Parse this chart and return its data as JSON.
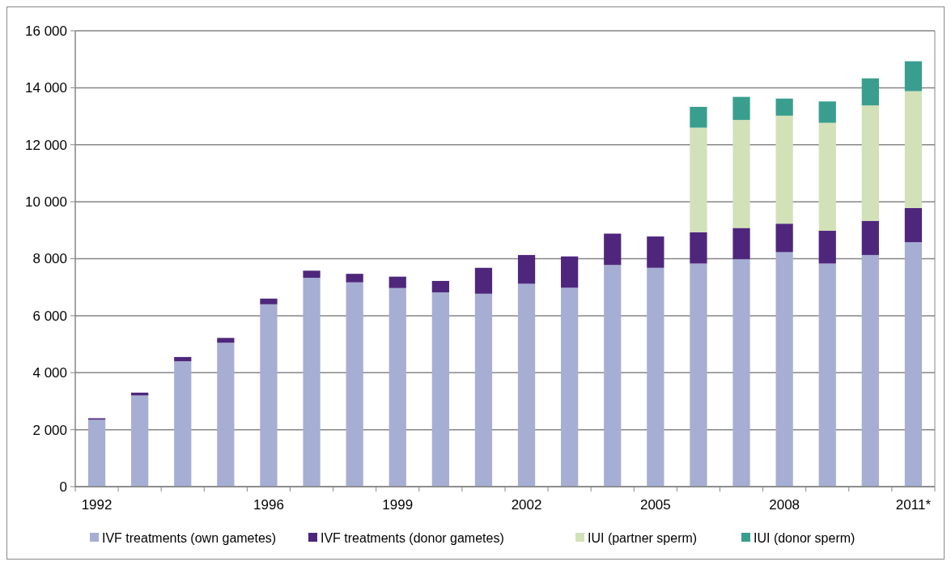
{
  "chart_data": {
    "type": "bar",
    "stacked": true,
    "categories": [
      "1992",
      null,
      null,
      null,
      "1996",
      null,
      null,
      "1999",
      null,
      null,
      "2002",
      null,
      null,
      "2005",
      null,
      null,
      "2008",
      null,
      null,
      "2011*"
    ],
    "series": [
      {
        "name": "IVF treatments  (own gametes)",
        "color": "#a6aed4",
        "values": [
          2350,
          3200,
          4400,
          5050,
          6400,
          7330,
          7170,
          6970,
          6820,
          6770,
          7120,
          6980,
          7780,
          7680,
          7830,
          7980,
          8230,
          7830,
          8130,
          8580
        ]
      },
      {
        "name": "IVF treatments  (donor gametes)",
        "color": "#4e277c",
        "values": [
          50,
          100,
          150,
          170,
          200,
          250,
          300,
          400,
          400,
          910,
          1010,
          1100,
          1100,
          1100,
          1100,
          1100,
          1000,
          1150,
          1200,
          1200
        ]
      },
      {
        "name": "IUI (partner sperm)",
        "color": "#d3e1b8",
        "values": [
          null,
          null,
          null,
          null,
          null,
          null,
          null,
          null,
          null,
          null,
          null,
          null,
          null,
          null,
          3670,
          3790,
          3790,
          3790,
          4050,
          4100
        ]
      },
      {
        "name": "IUI (donor sperm)",
        "color": "#3a9e8e",
        "values": [
          null,
          null,
          null,
          null,
          null,
          null,
          null,
          null,
          null,
          null,
          null,
          null,
          null,
          null,
          730,
          810,
          600,
          750,
          950,
          1050
        ]
      }
    ],
    "ylim": [
      0,
      16000
    ],
    "yticks": [
      {
        "value": 0,
        "label": "0"
      },
      {
        "value": 2000,
        "label": "2 000"
      },
      {
        "value": 4000,
        "label": "4 000"
      },
      {
        "value": 6000,
        "label": "6 000"
      },
      {
        "value": 8000,
        "label": "8 000"
      },
      {
        "value": 10000,
        "label": "10 000"
      },
      {
        "value": 12000,
        "label": "12 000"
      },
      {
        "value": 14000,
        "label": "14 000"
      },
      {
        "value": 16000,
        "label": "16 000"
      }
    ],
    "grid": "y",
    "legend": "bottom"
  }
}
